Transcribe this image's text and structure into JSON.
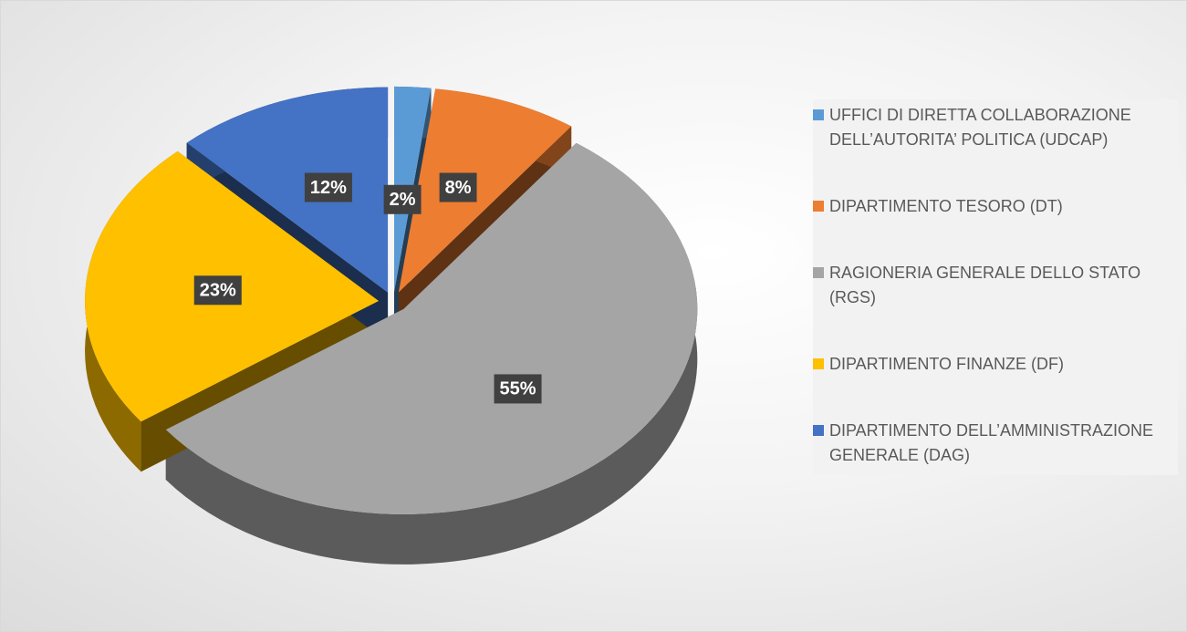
{
  "chart_data": {
    "type": "pie",
    "categories": [
      "UFFICI DI DIRETTA COLLABORAZIONE DELL’AUTORITA’ POLITICA (UDCAP)",
      "DIPARTIMENTO TESORO (DT)",
      "RAGIONERIA GENERALE DELLO STATO (RGS)",
      "DIPARTIMENTO FINANZE (DF)",
      "DIPARTIMENTO DELL’AMMINISTRAZIONE GENERALE (DAG)"
    ],
    "values": [
      2,
      8,
      55,
      23,
      12
    ],
    "value_labels": [
      "2%",
      "8%",
      "55%",
      "23%",
      "12%"
    ],
    "colors": [
      "#5b9bd5",
      "#ed7d31",
      "#a5a5a5",
      "#ffc000",
      "#4472c4"
    ],
    "legend": "right"
  }
}
